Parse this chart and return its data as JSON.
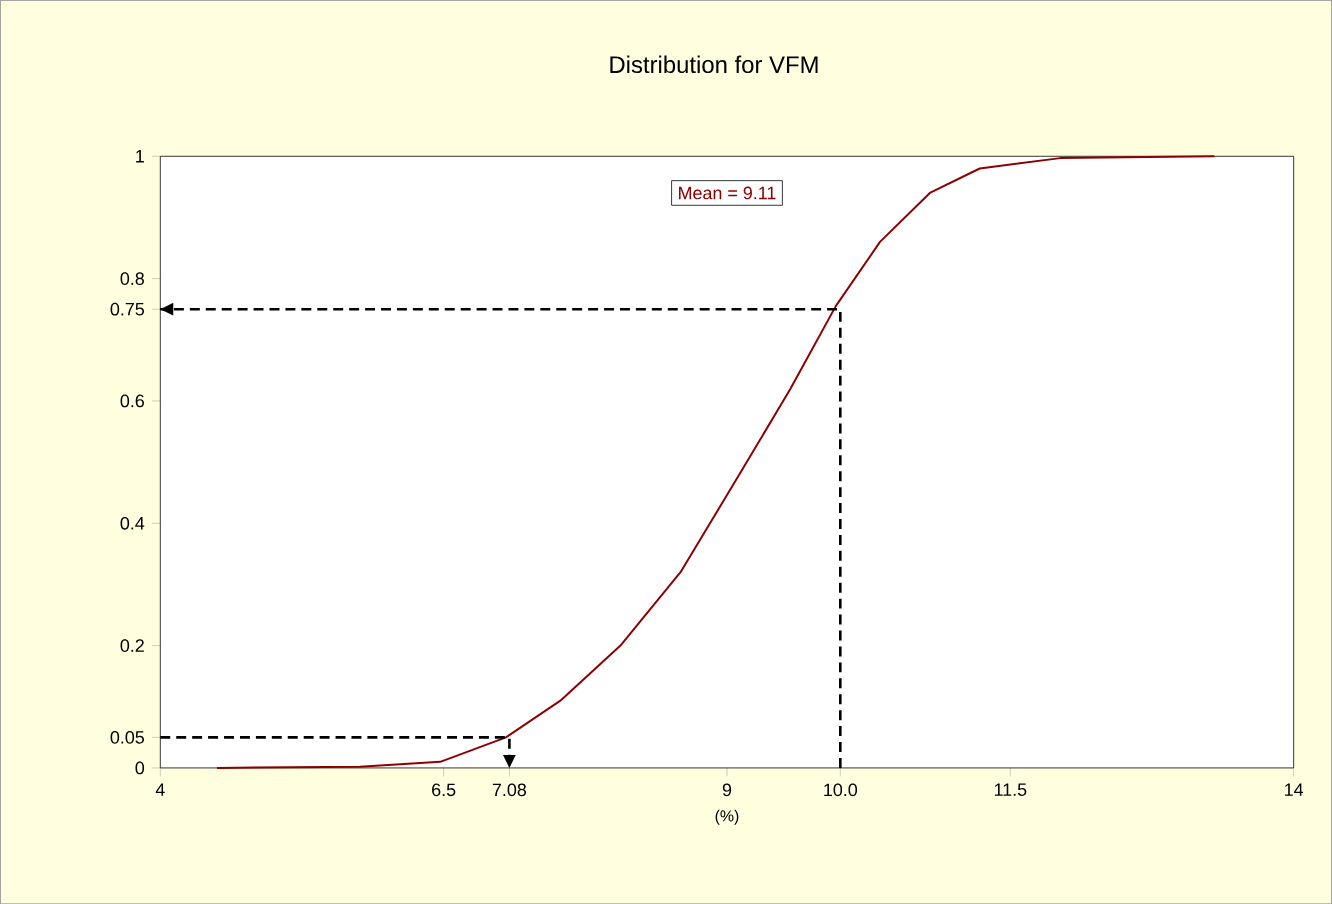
{
  "chart_data": {
    "type": "line",
    "title": "Distribution for VFM",
    "xlabel": "(%)",
    "annotations": [
      "Mean = 9.11"
    ],
    "xlim": [
      4,
      14
    ],
    "ylim": [
      0,
      1
    ],
    "xticks": [
      4,
      6.5,
      7.08,
      9,
      {
        "value": 10,
        "label": "10.0"
      },
      11.5,
      14
    ],
    "yticks": [
      0,
      0.05,
      0.2,
      0.4,
      0.6,
      0.75,
      0.8,
      1
    ],
    "grid": false,
    "marker": "none",
    "series": [
      {
        "color": "#8b0000",
        "line_style": "solid",
        "x": [
          4.5,
          5.76,
          6.47,
          7.05,
          7.53,
          8.06,
          8.59,
          9.11,
          9.56,
          9.96,
          10.35,
          10.79,
          11.23,
          11.94,
          13.3
        ],
        "values": [
          0,
          0.002,
          0.01,
          0.05,
          0.11,
          0.2,
          0.32,
          0.48,
          0.62,
          0.755,
          0.86,
          0.94,
          0.98,
          0.997,
          1.0
        ]
      },
      {
        "color": "#000000",
        "line_style": "dashed",
        "x": [
          10,
          10,
          4
        ],
        "values": [
          0,
          0.75,
          0.75
        ]
      },
      {
        "color": "#000000",
        "line_style": "dashed",
        "x": [
          4,
          7.08,
          7.08
        ],
        "values": [
          0.05,
          0.05,
          0
        ]
      }
    ]
  }
}
